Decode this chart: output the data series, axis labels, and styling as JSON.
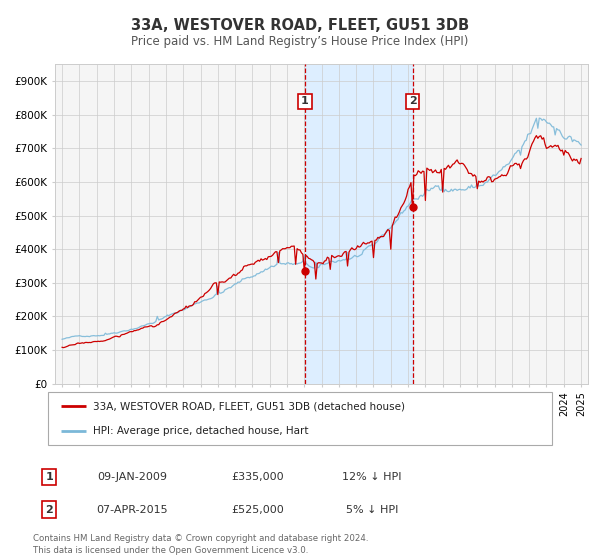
{
  "title": "33A, WESTOVER ROAD, FLEET, GU51 3DB",
  "subtitle": "Price paid vs. HM Land Registry’s House Price Index (HPI)",
  "hpi_label": "HPI: Average price, detached house, Hart",
  "price_label": "33A, WESTOVER ROAD, FLEET, GU51 3DB (detached house)",
  "transaction1": {
    "label": "1",
    "date": "09-JAN-2009",
    "price": "£335,000",
    "hpi_diff": "12% ↓ HPI",
    "year": 2009.04
  },
  "transaction2": {
    "label": "2",
    "date": "07-APR-2015",
    "price": "£525,000",
    "hpi_diff": "5% ↓ HPI",
    "year": 2015.27
  },
  "ylim": [
    0,
    950000
  ],
  "yticks": [
    0,
    100000,
    200000,
    300000,
    400000,
    500000,
    600000,
    700000,
    800000,
    900000
  ],
  "ytick_labels": [
    "£0",
    "£100K",
    "£200K",
    "£300K",
    "£400K",
    "£500K",
    "£600K",
    "£700K",
    "£800K",
    "£900K"
  ],
  "xlim_start": 1994.6,
  "xlim_end": 2025.4,
  "hpi_color": "#7bb8d8",
  "price_color": "#cc0000",
  "background_color": "#ffffff",
  "plot_bg_color": "#f5f5f5",
  "shade_color": "#ddeeff",
  "grid_color": "#cccccc",
  "footer_text": "Contains HM Land Registry data © Crown copyright and database right 2024.\nThis data is licensed under the Open Government Licence v3.0.",
  "transaction1_price_y": 335000,
  "transaction2_price_y": 525000
}
